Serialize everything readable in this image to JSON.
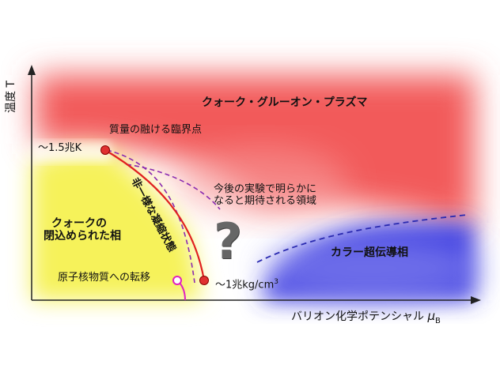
{
  "axes": {
    "y_label": "温度 T",
    "x_label": "バリオン化学ポテンシャル",
    "x_symbol": "μ",
    "x_symbol_sub": "B"
  },
  "regions": {
    "qgp": "クォーク・グルーオン・プラズマ",
    "confined": [
      "クォークの",
      "閉込められた相"
    ],
    "color_sc": "カラー超伝導相",
    "unknown": [
      "今後の実験で明らかに",
      "なると期待される領域"
    ],
    "unknown_mark": "?"
  },
  "points": {
    "critical_point": "質量の融ける臨界点",
    "temp_value": "〜1.5兆K",
    "density_prefix": "〜1兆kg/cm",
    "density_sup": "3",
    "nuclear_transition": "原子核物質への転移"
  },
  "bands": {
    "inhomogeneous": "非一様な凝縮状態"
  },
  "colors": {
    "qgp_red": "#f25a5a",
    "color_sc_blue": "#3a3ae0",
    "confined_yellow": "#f6f25a",
    "transition_line": "#e02020",
    "dashed_purple": "#8a2ab0",
    "dashed_blue": "#2a2ab0",
    "magenta_point": "#e020c0"
  }
}
